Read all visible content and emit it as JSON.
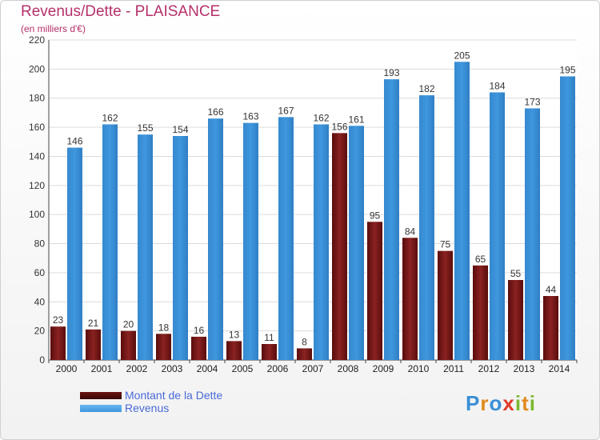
{
  "header": {
    "title": "Revenus/Dette - PLAISANCE",
    "subtitle": "(en milliers d'€)"
  },
  "legend": {
    "items": [
      {
        "label": "Montant de la Dette",
        "color": "#6b1212"
      },
      {
        "label": "Revenus",
        "color": "#3f97dd"
      }
    ]
  },
  "logo": {
    "text": "Proxiti",
    "letters": [
      {
        "char": "P",
        "color": "#3a8fd6"
      },
      {
        "char": "r",
        "color": "#e08a1e"
      },
      {
        "char": "o",
        "color": "#3a8fd6"
      },
      {
        "char": "x",
        "color": "#e03a2a"
      },
      {
        "char": "i",
        "color": "#7ab82e"
      },
      {
        "char": "t",
        "color": "#e08a1e"
      },
      {
        "char": "i",
        "color": "#7ab82e"
      }
    ]
  },
  "chart_data": {
    "type": "bar",
    "title": "Revenus/Dette - PLAISANCE",
    "subtitle": "(en milliers d'€)",
    "categories": [
      "2000",
      "2001",
      "2002",
      "2003",
      "2004",
      "2005",
      "2006",
      "2007",
      "2008",
      "2009",
      "2010",
      "2011",
      "2012",
      "2013",
      "2014"
    ],
    "series": [
      {
        "name": "Montant de la Dette",
        "color": "#8a2222",
        "values": [
          23,
          21,
          20,
          18,
          16,
          13,
          11,
          8,
          156,
          95,
          84,
          75,
          65,
          55,
          44
        ]
      },
      {
        "name": "Revenus",
        "color": "#3f97dd",
        "values": [
          146,
          162,
          155,
          154,
          166,
          163,
          167,
          162,
          161,
          193,
          182,
          205,
          184,
          173,
          195
        ]
      }
    ],
    "ylim": [
      0,
      220
    ],
    "yticks": [
      0,
      20,
      40,
      60,
      80,
      100,
      120,
      140,
      160,
      180,
      200,
      220
    ],
    "grid": true,
    "legend_position": "bottom-left"
  }
}
